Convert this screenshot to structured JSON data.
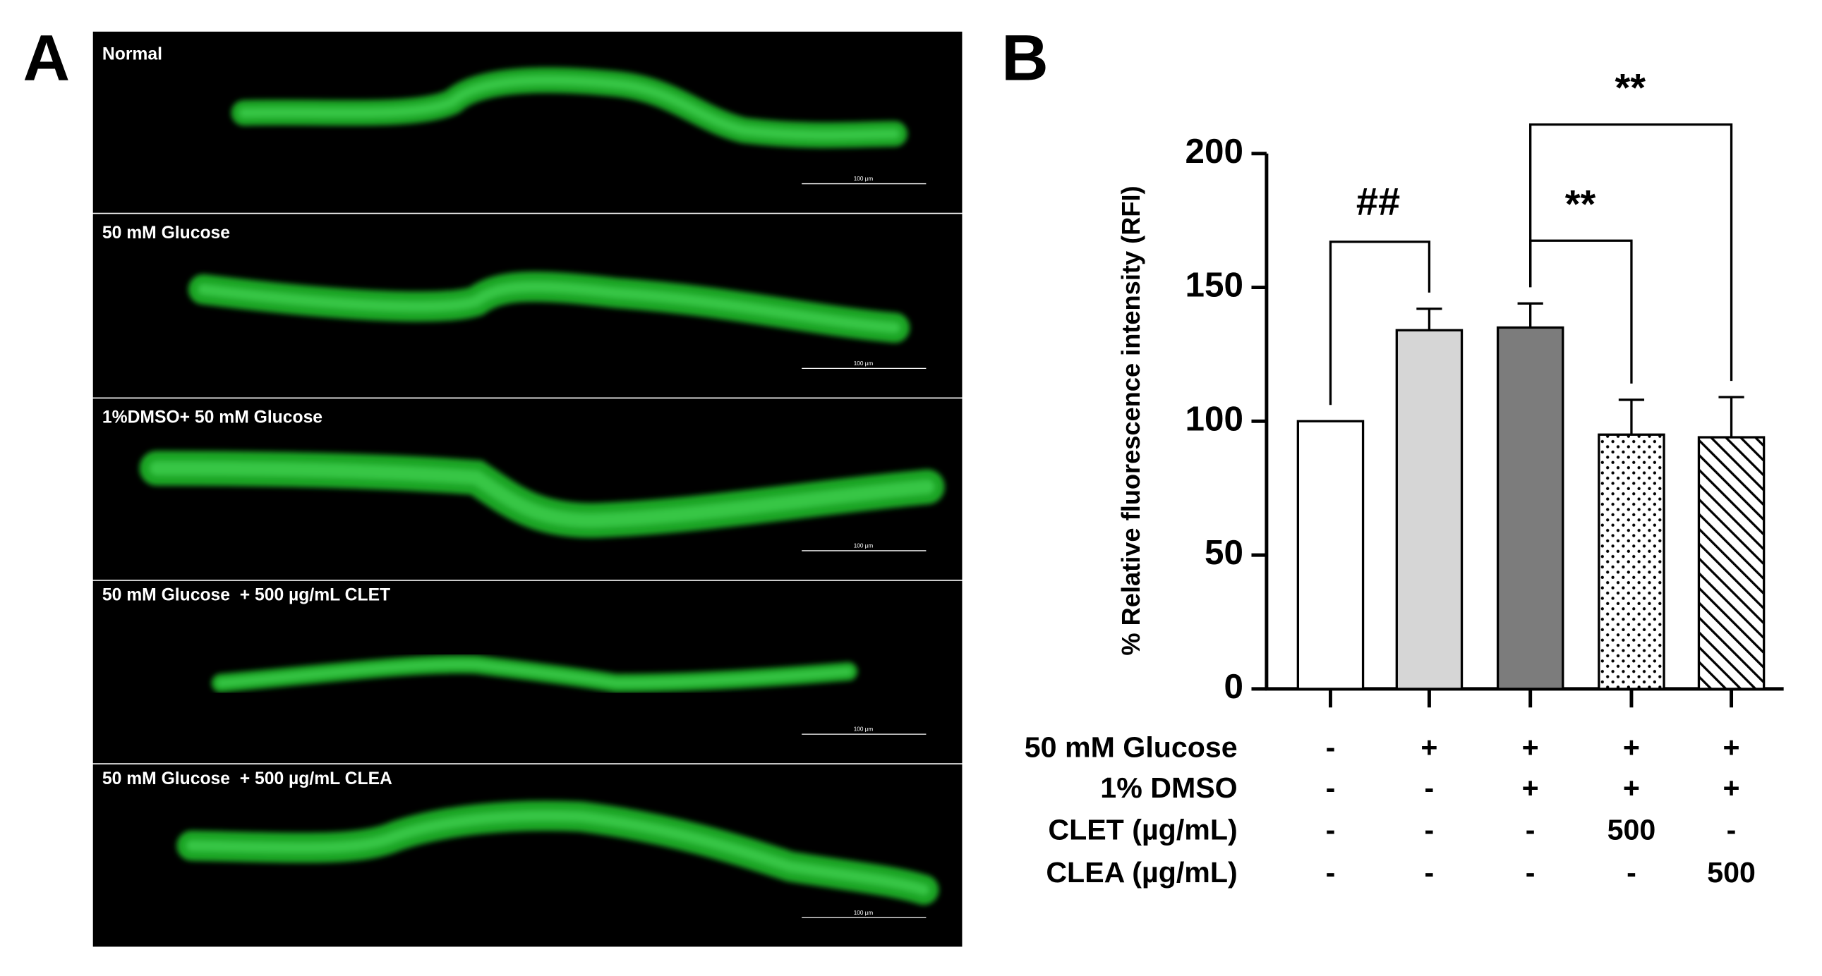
{
  "panel_a": {
    "label": "A",
    "images": [
      {
        "caption": "Normal",
        "scale_bar": "100 µm"
      },
      {
        "caption": "50 mM Glucose",
        "scale_bar": "100 µm"
      },
      {
        "caption": "1%DMSO+ 50 mM Glucose",
        "scale_bar": "100 µm"
      },
      {
        "caption": "50 mM Glucose  + 500 µg/mL CLET",
        "scale_bar": "100 µm"
      },
      {
        "caption": "50 mM Glucose  + 500 µg/mL CLEA",
        "scale_bar": "100 µm"
      }
    ]
  },
  "panel_b": {
    "label": "B"
  },
  "chart_data": {
    "type": "bar",
    "y_label": "% Relative fluorescence intensity (RFI)",
    "values": [
      100,
      134,
      135,
      95,
      94
    ],
    "errors": [
      null,
      8,
      9,
      13,
      15
    ],
    "fills": [
      "#ffffff",
      "#d6d6d6",
      "#7c7c7c",
      "dots",
      "hatch"
    ],
    "ylim": [
      0,
      200
    ],
    "yticks": [
      0,
      50,
      100,
      150,
      200
    ],
    "annotations": [
      "##",
      "**",
      "**"
    ],
    "treatments": [
      {
        "name": "50 mM Glucose",
        "levels": [
          "-",
          "+",
          "+",
          "+",
          "+"
        ]
      },
      {
        "name": "1% DMSO",
        "levels": [
          "-",
          "-",
          "+",
          "+",
          "+"
        ]
      },
      {
        "name": "CLET (µg/mL)",
        "levels": [
          "-",
          "-",
          "-",
          "500",
          "-"
        ]
      },
      {
        "name": "CLEA (µg/mL)",
        "levels": [
          "-",
          "-",
          "-",
          "-",
          "500"
        ]
      }
    ]
  }
}
